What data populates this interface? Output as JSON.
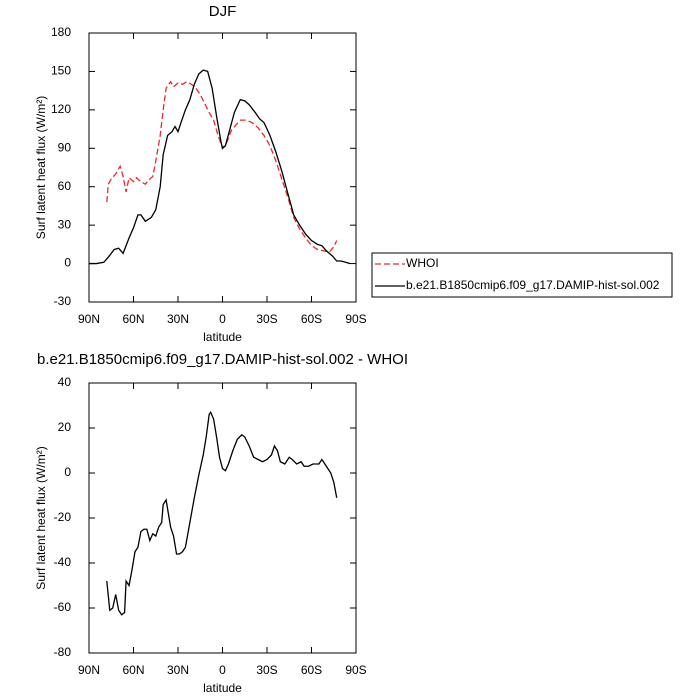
{
  "chart_data": [
    {
      "type": "line",
      "title": "DJF",
      "xlabel": "latitude",
      "ylabel": "Surf latent heat flux (W/m²)",
      "xlim": [
        90,
        -90
      ],
      "ylim": [
        -30,
        180
      ],
      "xticks": [
        {
          "value": 90,
          "label": "90N"
        },
        {
          "value": 60,
          "label": "60N"
        },
        {
          "value": 30,
          "label": "30N"
        },
        0,
        {
          "value": -30,
          "label": "30S"
        },
        {
          "value": -60,
          "label": "60S"
        },
        {
          "value": -90,
          "label": "90S"
        }
      ],
      "yticks": [
        -30,
        0,
        30,
        60,
        90,
        120,
        150,
        180
      ],
      "legend": "right",
      "series": [
        {
          "name": "WHOI",
          "color": "#e8292e",
          "line_style": "dashed",
          "x": [
            78,
            77,
            75,
            72,
            69,
            67,
            65,
            63,
            60,
            58,
            55,
            52,
            50,
            47,
            45,
            42,
            40,
            38,
            35,
            33,
            30,
            27,
            24,
            21,
            18,
            15,
            12,
            9,
            6,
            3,
            0,
            -3,
            -6,
            -9,
            -12,
            -16,
            -20,
            -24,
            -28,
            -32,
            -36,
            -40,
            -44,
            -48,
            -52,
            -56,
            -60,
            -64,
            -68,
            -72,
            -75,
            -77
          ],
          "values": [
            48,
            62,
            66,
            70,
            76,
            68,
            56,
            67,
            64,
            67,
            64,
            62,
            65,
            68,
            80,
            100,
            120,
            137,
            142,
            138,
            141,
            140,
            142,
            140,
            137,
            132,
            125,
            118,
            112,
            100,
            90,
            95,
            104,
            108,
            112,
            112,
            110,
            106,
            100,
            92,
            80,
            66,
            52,
            36,
            27,
            20,
            14,
            11,
            10,
            9,
            13,
            18
          ]
        },
        {
          "name": "b.e21.B1850cmip6.f09_g17.DAMIP-hist-sol.002",
          "color": "#000000",
          "line_style": "solid",
          "x": [
            90,
            85,
            80,
            77,
            73,
            70,
            67,
            63,
            60,
            57,
            55,
            52,
            48,
            45,
            42,
            40,
            37,
            34,
            32,
            30,
            28,
            25,
            22,
            19,
            16,
            13,
            10,
            7,
            4,
            1,
            0,
            -2,
            -5,
            -8,
            -12,
            -15,
            -18,
            -22,
            -25,
            -28,
            -32,
            -36,
            -40,
            -44,
            -48,
            -52,
            -56,
            -60,
            -64,
            -67,
            -70,
            -74,
            -77,
            -80,
            -83,
            -86
          ],
          "values": [
            0,
            0,
            1,
            5,
            11,
            12,
            8,
            20,
            28,
            38,
            38,
            33,
            36,
            42,
            60,
            85,
            100,
            103,
            107,
            103,
            110,
            120,
            128,
            140,
            148,
            151,
            150,
            137,
            115,
            95,
            90,
            92,
            105,
            118,
            128,
            127,
            124,
            118,
            113,
            110,
            100,
            87,
            72,
            55,
            38,
            30,
            23,
            18,
            15,
            14,
            10,
            6,
            2,
            2,
            1,
            0
          ]
        }
      ]
    },
    {
      "type": "line",
      "title": "b.e21.B1850cmip6.f09_g17.DAMIP-hist-sol.002 - WHOI",
      "xlabel": "latitude",
      "ylabel": "Surf latent heat flux (W/m²)",
      "xlim": [
        90,
        -90
      ],
      "ylim": [
        -80,
        40
      ],
      "xticks": [
        {
          "value": 90,
          "label": "90N"
        },
        {
          "value": 60,
          "label": "60N"
        },
        {
          "value": 30,
          "label": "30N"
        },
        0,
        {
          "value": -30,
          "label": "30S"
        },
        {
          "value": -60,
          "label": "60S"
        },
        {
          "value": -90,
          "label": "90S"
        }
      ],
      "yticks": [
        -80,
        -60,
        -40,
        -20,
        0,
        20,
        40
      ],
      "series": [
        {
          "color": "#000000",
          "line_style": "solid",
          "x": [
            78,
            76,
            74,
            72,
            70,
            68,
            66,
            65,
            63,
            61,
            59,
            57,
            55,
            53,
            51,
            49,
            47,
            45,
            43,
            41,
            40,
            38,
            37,
            35,
            33,
            31,
            29,
            27,
            25,
            22,
            19,
            16,
            13,
            11,
            9,
            8,
            6,
            4,
            2,
            0,
            -2,
            -4,
            -7,
            -10,
            -13,
            -15,
            -18,
            -21,
            -24,
            -27,
            -30,
            -33,
            -35,
            -37,
            -39,
            -42,
            -45,
            -47,
            -50,
            -53,
            -55,
            -58,
            -61,
            -63,
            -65,
            -67,
            -69,
            -71,
            -73,
            -75,
            -77
          ],
          "values": [
            -48,
            -61,
            -60,
            -54,
            -61,
            -63,
            -62,
            -48,
            -50,
            -43,
            -35,
            -33,
            -26,
            -25,
            -25,
            -30,
            -27,
            -28,
            -24,
            -22,
            -14,
            -12,
            -16,
            -24,
            -28,
            -36,
            -36,
            -35,
            -33,
            -22,
            -11,
            -1,
            8,
            16,
            26,
            27,
            24,
            16,
            7,
            2,
            1,
            4,
            10,
            15,
            17,
            16,
            12,
            7,
            6,
            5,
            6,
            8,
            12,
            10,
            5,
            4,
            7,
            6,
            4,
            5,
            3,
            3,
            4,
            4,
            4,
            6,
            4,
            2,
            0,
            -4,
            -11
          ]
        }
      ]
    }
  ]
}
